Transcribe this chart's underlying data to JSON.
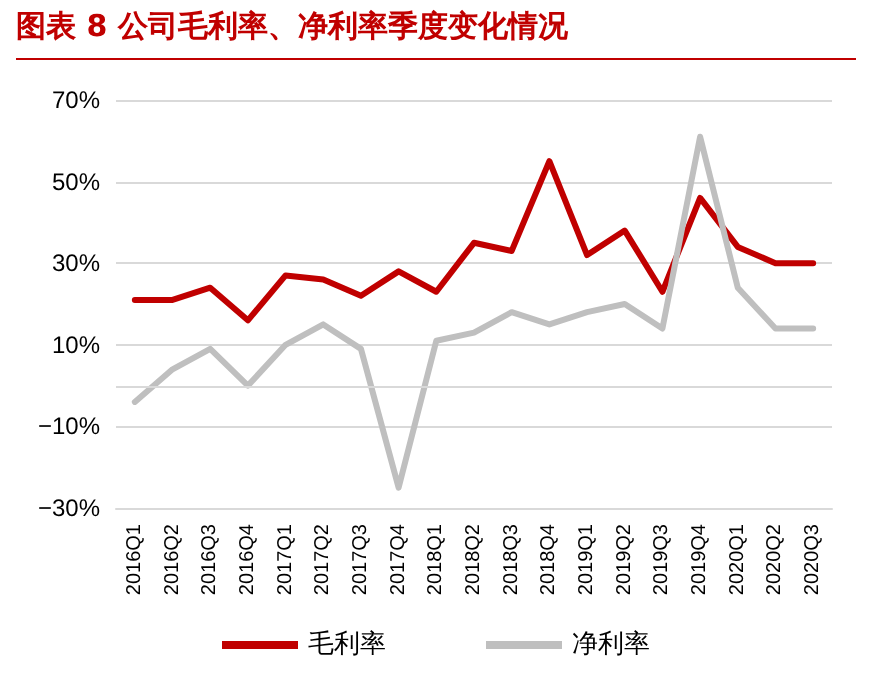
{
  "chart_data": {
    "type": "line",
    "title": "图表 8 公司毛利率、净利率季度变化情况",
    "categories": [
      "2016Q1",
      "2016Q2",
      "2016Q3",
      "2016Q4",
      "2017Q1",
      "2017Q2",
      "2017Q3",
      "2017Q4",
      "2018Q1",
      "2018Q2",
      "2018Q3",
      "2018Q4",
      "2019Q1",
      "2019Q2",
      "2019Q3",
      "2019Q4",
      "2020Q1",
      "2020Q2",
      "2020Q3"
    ],
    "series": [
      {
        "name": "毛利率",
        "color": "#c00000",
        "values": [
          21,
          21,
          24,
          16,
          27,
          26,
          22,
          28,
          23,
          35,
          33,
          55,
          32,
          38,
          23,
          46,
          34,
          30,
          30
        ]
      },
      {
        "name": "净利率",
        "color": "#bfbfbf",
        "values": [
          -4,
          4,
          9,
          0,
          10,
          15,
          9,
          -25,
          11,
          13,
          18,
          15,
          18,
          20,
          14,
          61,
          24,
          14,
          14
        ]
      }
    ],
    "ylim": [
      -30,
      70
    ],
    "yticks": [
      {
        "value": -30,
        "label": "−30%"
      },
      {
        "value": -10,
        "label": "−10%"
      },
      {
        "value": 10,
        "label": "10%"
      },
      {
        "value": 30,
        "label": "30%"
      },
      {
        "value": 50,
        "label": "50%"
      },
      {
        "value": 70,
        "label": "70%"
      }
    ],
    "ref_lines": [
      {
        "axis": "y",
        "value": 0,
        "color": "#d9d9d9"
      }
    ],
    "grid": "y",
    "legend": "bottom",
    "marker": "none",
    "line_style": "solid"
  }
}
